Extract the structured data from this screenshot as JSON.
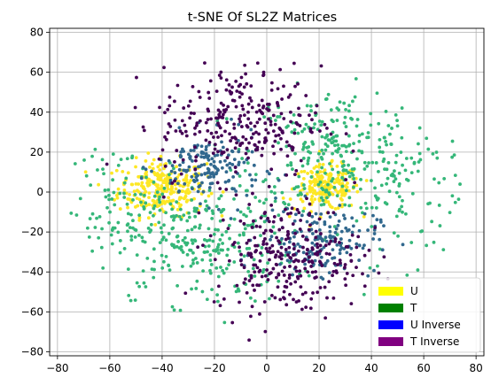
{
  "chart_data": {
    "type": "scatter",
    "title": "t-SNE Of SL2Z Matrices",
    "xlabel": "",
    "ylabel": "",
    "xlim": [
      -83,
      83
    ],
    "ylim": [
      -82,
      82
    ],
    "xticks": [
      -80,
      -60,
      -40,
      -20,
      0,
      20,
      40,
      60,
      80
    ],
    "yticks": [
      -80,
      -60,
      -40,
      -20,
      0,
      20,
      40,
      60,
      80
    ],
    "grid": true,
    "legend_position": "lower-right",
    "legend": [
      {
        "name": "U",
        "color": "#ffff00"
      },
      {
        "name": "T",
        "color": "#008000"
      },
      {
        "name": "U Inverse",
        "color": "#0000ff"
      },
      {
        "name": "T Inverse",
        "color": "#800080"
      }
    ],
    "point_colors": {
      "U": "#fde725",
      "T": "#35b779",
      "U Inverse": "#31688e",
      "T Inverse": "#440154"
    },
    "clusters": [
      {
        "series": "U",
        "center": [
          -40,
          2
        ],
        "spread": [
          12,
          10
        ],
        "count": 260
      },
      {
        "series": "U",
        "center": [
          23,
          2
        ],
        "spread": [
          9,
          8
        ],
        "count": 200
      },
      {
        "series": "T",
        "center": [
          25,
          20
        ],
        "spread": [
          22,
          22
        ],
        "count": 260
      },
      {
        "series": "T",
        "center": [
          -25,
          -25
        ],
        "spread": [
          25,
          22
        ],
        "count": 260
      },
      {
        "series": "T",
        "center": [
          -55,
          -10
        ],
        "spread": [
          22,
          25
        ],
        "count": 120
      },
      {
        "series": "T",
        "center": [
          55,
          0
        ],
        "spread": [
          20,
          25
        ],
        "count": 100
      },
      {
        "series": "U Inverse",
        "center": [
          -22,
          12
        ],
        "spread": [
          14,
          12
        ],
        "count": 160
      },
      {
        "series": "U Inverse",
        "center": [
          20,
          -24
        ],
        "spread": [
          16,
          12
        ],
        "count": 160
      },
      {
        "series": "T Inverse",
        "center": [
          -10,
          35
        ],
        "spread": [
          22,
          20
        ],
        "count": 280
      },
      {
        "series": "T Inverse",
        "center": [
          8,
          -32
        ],
        "spread": [
          20,
          20
        ],
        "count": 280
      }
    ]
  }
}
